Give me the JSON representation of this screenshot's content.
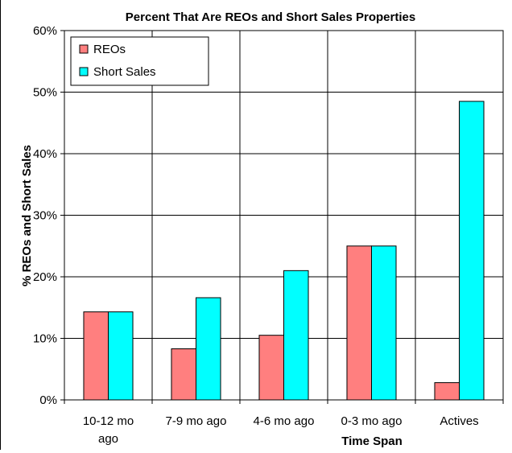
{
  "chart_data": {
    "type": "bar",
    "title": "Percent That Are REOs and Short Sales Properties",
    "xlabel": "Time Span",
    "ylabel": "% REOs and Short Sales",
    "categories": [
      [
        "10-12 mo",
        "ago"
      ],
      [
        "7-9 mo ago"
      ],
      [
        "4-6 mo ago"
      ],
      [
        "0-3 mo ago"
      ],
      [
        "Actives"
      ]
    ],
    "series": [
      {
        "name": "REOs",
        "color": "#FF7F7F",
        "values": [
          14.3,
          8.3,
          10.5,
          25.0,
          2.8
        ]
      },
      {
        "name": "Short Sales",
        "color": "#00FFFF",
        "values": [
          14.3,
          16.6,
          21.0,
          25.0,
          48.5
        ]
      }
    ],
    "ylim": [
      0,
      60
    ],
    "yticks": [
      0,
      10,
      20,
      30,
      40,
      50,
      60
    ],
    "ytick_format": "{v}%",
    "grid": true,
    "legend_position": "top-left"
  }
}
